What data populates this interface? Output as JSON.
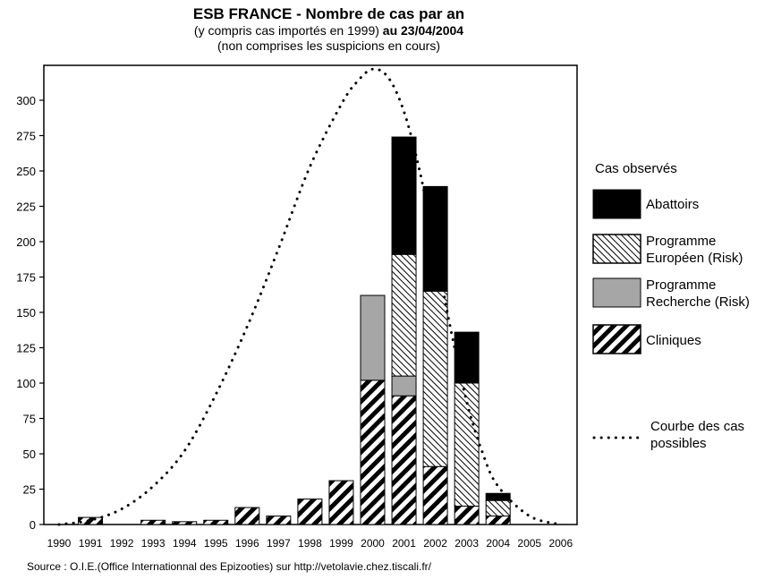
{
  "title": {
    "line1": "ESB FRANCE - Nombre de cas par an",
    "line2_prefix": "(y compris cas importés en 1999) ",
    "line2_bold": "au 23/04/2004",
    "line3": "(non comprises les suspicions en cours)"
  },
  "legend": {
    "title": "Cas observés",
    "abattoirs": "Abattoirs",
    "programme_europeen": [
      "Programme",
      "Européen (Risk)"
    ],
    "programme_recherche": [
      "Programme",
      "Recherche (Risk)"
    ],
    "cliniques": "Cliniques",
    "courbe": [
      "Courbe des cas",
      "possibles"
    ]
  },
  "source": "Source : O.I.E.(Office Internationnal des Epizooties) sur http://vetolavie.chez.tiscali.fr/",
  "chart_data": {
    "type": "bar",
    "stacked": true,
    "categories": [
      "1990",
      "1991",
      "1992",
      "1993",
      "1994",
      "1995",
      "1996",
      "1997",
      "1998",
      "1999",
      "2000",
      "2001",
      "2002",
      "2003",
      "2004",
      "2005",
      "2006"
    ],
    "series": [
      {
        "name": "Cliniques",
        "values": [
          0,
          5,
          0,
          3,
          2,
          3,
          12,
          6,
          18,
          31,
          102,
          91,
          41,
          13,
          6,
          0,
          0
        ],
        "pattern": "wide-diagonal"
      },
      {
        "name": "Programme Recherche (Risk)",
        "values": [
          0,
          0,
          0,
          0,
          0,
          0,
          0,
          0,
          0,
          0,
          60,
          14,
          0,
          0,
          0,
          0,
          0
        ],
        "color": "#a6a6a6"
      },
      {
        "name": "Programme Européen (Risk)",
        "values": [
          0,
          0,
          0,
          0,
          0,
          0,
          0,
          0,
          0,
          0,
          0,
          86,
          124,
          87,
          11,
          0,
          0
        ],
        "pattern": "fine-diagonal"
      },
      {
        "name": "Abattoirs",
        "values": [
          0,
          0,
          0,
          0,
          0,
          0,
          0,
          0,
          0,
          0,
          0,
          83,
          74,
          36,
          5,
          0,
          0
        ],
        "color": "#000000"
      }
    ],
    "curve": {
      "name": "Courbe des cas possibles",
      "x": [
        1990,
        1991,
        1992,
        1993,
        1994,
        1995,
        1996,
        1997,
        1998,
        1999,
        1999.5,
        2000,
        2000.5,
        2001,
        2001.5,
        2002,
        2002.5,
        2003,
        2003.5,
        2004,
        2005,
        2006
      ],
      "y": [
        0,
        3,
        11,
        27,
        52,
        92,
        140,
        195,
        253,
        297,
        313,
        322,
        316,
        292,
        250,
        195,
        137,
        87,
        51,
        27,
        6,
        0
      ]
    },
    "ylim": [
      0,
      325
    ],
    "yticks": [
      0,
      25,
      50,
      75,
      100,
      125,
      150,
      175,
      200,
      225,
      250,
      275,
      300
    ],
    "xlabel": "",
    "ylabel": "",
    "legend_position": "right",
    "grid": false
  }
}
